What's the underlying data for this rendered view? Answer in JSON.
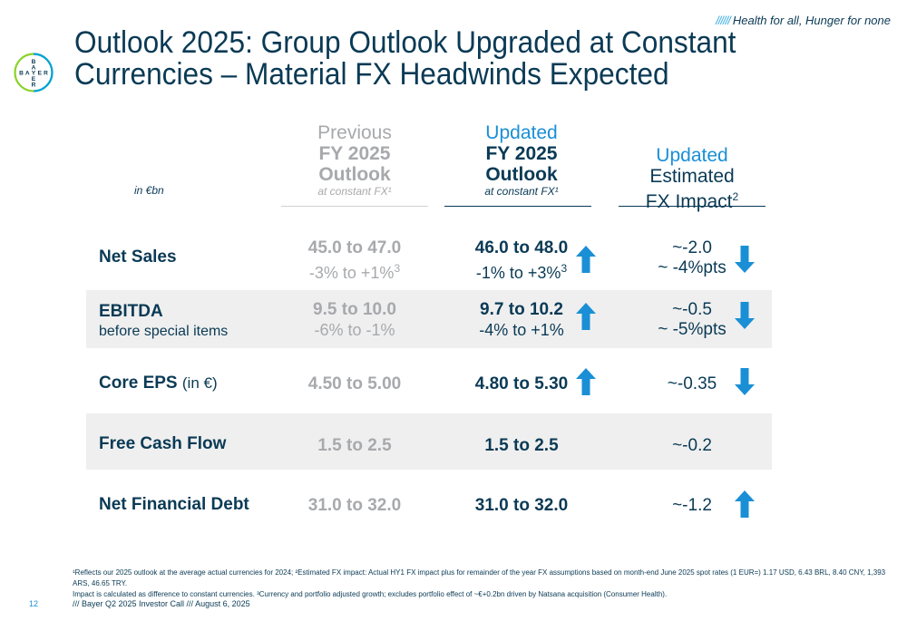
{
  "tagline": {
    "slashes": "//////",
    "text": "Health for all, Hunger for none"
  },
  "logo": {
    "letters": [
      "B",
      "A",
      "Y",
      "E",
      "R"
    ],
    "color": "#00a0dc",
    "accent": "#89d329"
  },
  "title": {
    "line1": "Outlook 2025: Group Outlook Upgraded at Constant",
    "line2": "Currencies – Material FX Headwinds Expected"
  },
  "columns": {
    "unit": "in €bn",
    "previous": {
      "l1": "Previous",
      "l2": "FY 2025",
      "l3": "Outlook",
      "sub": "at constant FX¹"
    },
    "updated": {
      "l1": "Updated",
      "l2": "FY 2025",
      "l3": "Outlook",
      "sub": "at constant FX¹"
    },
    "fx": {
      "l1": "Updated",
      "l2": "Estimated",
      "l3": "FX Impact",
      "sup": "2"
    }
  },
  "rows": [
    {
      "label": "Net Sales",
      "sub": "",
      "unit_note": "",
      "prev": "45.0 to 47.0",
      "prev_growth": "-3% to +1%",
      "prev_sup": "3",
      "upd": "46.0 to 48.0",
      "upd_growth": "-1% to +3%",
      "upd_sup": "3",
      "upd_arrow": "up",
      "fx": "~-2.0",
      "fx_pts": "~ -4%pts",
      "fx_arrow": "down"
    },
    {
      "label": "EBITDA",
      "sub": "before special items",
      "unit_note": "",
      "prev": "9.5 to 10.0",
      "prev_growth": "-6% to -1%",
      "prev_sup": "",
      "upd": "9.7 to 10.2",
      "upd_growth": "-4% to +1%",
      "upd_sup": "",
      "upd_arrow": "up",
      "fx": "~-0.5",
      "fx_pts": "~ -5%pts",
      "fx_arrow": "down"
    },
    {
      "label": "Core EPS",
      "sub": "",
      "unit_note": "(in €)",
      "prev": "4.50 to 5.00",
      "prev_growth": "",
      "prev_sup": "",
      "upd": "4.80 to 5.30",
      "upd_growth": "",
      "upd_sup": "",
      "upd_arrow": "up",
      "fx": "~-0.35",
      "fx_pts": "",
      "fx_arrow": "down"
    },
    {
      "label": "Free Cash Flow",
      "sub": "",
      "unit_note": "",
      "prev": "1.5 to 2.5",
      "prev_growth": "",
      "prev_sup": "",
      "upd": "1.5 to 2.5",
      "upd_growth": "",
      "upd_sup": "",
      "upd_arrow": "",
      "fx": "~-0.2",
      "fx_pts": "",
      "fx_arrow": ""
    },
    {
      "label": "Net Financial Debt",
      "sub": "",
      "unit_note": "",
      "prev": "31.0 to 32.0",
      "prev_growth": "",
      "prev_sup": "",
      "upd": "31.0 to 32.0",
      "upd_growth": "",
      "upd_sup": "",
      "upd_arrow": "",
      "fx": "~-1.2",
      "fx_pts": "",
      "fx_arrow": "up"
    }
  ],
  "footnote": {
    "line1": "¹Reflects our 2025 outlook at the average actual currencies for 2024; ²Estimated FX impact: Actual HY1 FX impact plus for remainder of the year FX assumptions based on month-end June 2025 spot rates (1 EUR=) 1.17 USD, 6.43 BRL, 8.40 CNY, 1,393 ARS, 46.65 TRY.",
    "line2": "Impact is calculated as difference to constant currencies. ³Currency and portfolio adjusted growth; excludes portfolio effect of ~€+0.2bn driven by Natsana acquisition (Consumer Health)."
  },
  "page_number": "12",
  "footer": "/// Bayer Q2 2025 Investor Call /// August 6, 2025",
  "colors": {
    "navy": "#0a3a55",
    "blue": "#1a8fd6",
    "grey": "#a7a9ac",
    "arrow": "#1a8fd6",
    "shade": "#efefef"
  }
}
